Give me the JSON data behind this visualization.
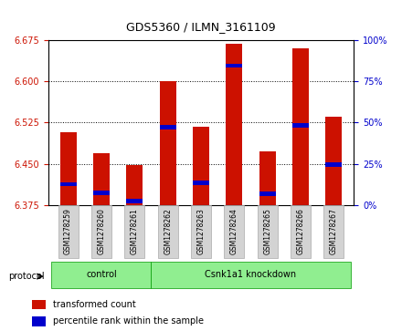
{
  "title": "GDS5360 / ILMN_3161109",
  "samples": [
    "GSM1278259",
    "GSM1278260",
    "GSM1278261",
    "GSM1278262",
    "GSM1278263",
    "GSM1278264",
    "GSM1278265",
    "GSM1278266",
    "GSM1278267"
  ],
  "bar_bottom": 6.375,
  "transformed_counts": [
    6.508,
    6.47,
    6.448,
    6.6,
    6.518,
    6.668,
    6.472,
    6.66,
    6.535
  ],
  "percentile_values": [
    6.413,
    6.398,
    6.382,
    6.517,
    6.415,
    6.628,
    6.396,
    6.52,
    6.448
  ],
  "bar_color": "#cc1100",
  "percentile_color": "#0000cc",
  "ylim_left": [
    6.375,
    6.675
  ],
  "ylim_right": [
    0,
    100
  ],
  "yticks_left": [
    6.375,
    6.45,
    6.525,
    6.6,
    6.675
  ],
  "yticks_right": [
    0,
    25,
    50,
    75,
    100
  ],
  "left_tick_color": "#cc1100",
  "right_tick_color": "#0000cc",
  "groups": [
    {
      "label": "control",
      "start": 0,
      "end": 3
    },
    {
      "label": "Csnk1a1 knockdown",
      "start": 3,
      "end": 9
    }
  ],
  "group_colors": [
    "#90ee90",
    "#90ee90"
  ],
  "protocol_label": "protocol",
  "legend_items": [
    {
      "label": "transformed count",
      "color": "#cc1100"
    },
    {
      "label": "percentile rank within the sample",
      "color": "#0000cc"
    }
  ],
  "bar_width": 0.5,
  "background_color": "#ffffff",
  "plot_bg_color": "#ffffff",
  "tick_label_bg": "#d3d3d3"
}
